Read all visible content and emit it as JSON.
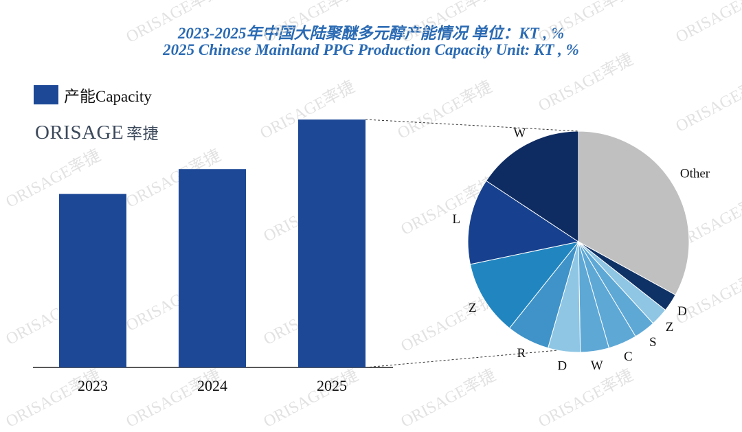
{
  "title_zh": "2023-2025年中国大陆聚醚多元醇产能情况 单位：KT , %",
  "title_en": "2025 Chinese Mainland PPG Production Capacity Unit: KT , %",
  "logo": {
    "text": "ORISAGE",
    "text_cn": "率捷"
  },
  "watermark": "ORISAGE率捷",
  "colors": {
    "bar": "#1c4896",
    "title": "#2a6ab3"
  },
  "chart_data": [
    {
      "type": "bar",
      "categories": [
        "2023",
        "2024",
        "2025"
      ],
      "series": [
        {
          "name": "产能Capacity",
          "values": [
            70,
            80,
            100
          ]
        }
      ],
      "ylim": [
        0,
        100
      ],
      "grid": false,
      "legend": "top-left"
    },
    {
      "type": "pie",
      "labels": [
        "Other",
        "D",
        "Z",
        "S",
        "C",
        "W",
        "D",
        "R",
        "Z",
        "L",
        "W"
      ],
      "values": [
        31.5,
        2.5,
        2.5,
        3,
        4,
        4,
        4.5,
        6,
        10.5,
        12,
        15
      ],
      "colors": [
        "#c0c0c0",
        "#0f3266",
        "#8fc6e4",
        "#5ea8d6",
        "#5ea8d6",
        "#5ea8d6",
        "#8fc6e4",
        "#3f93c8",
        "#2186c0",
        "#17418e",
        "#0f2c62"
      ],
      "legend": "none"
    }
  ]
}
